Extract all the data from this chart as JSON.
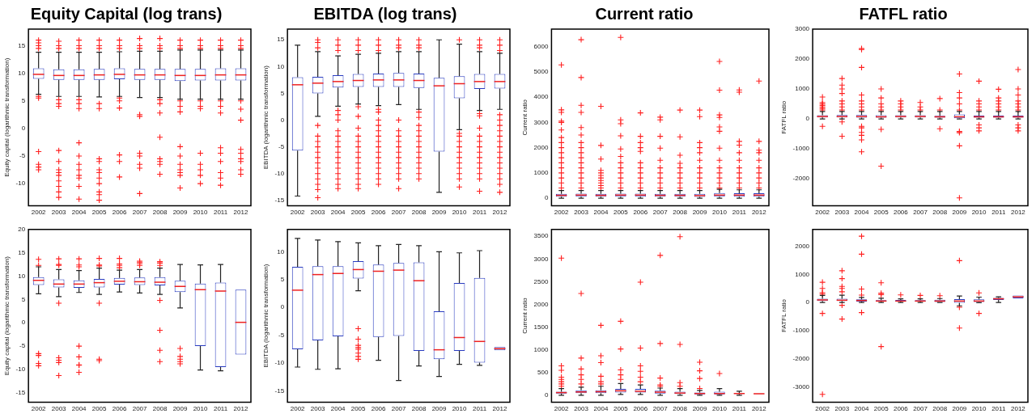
{
  "chart_data": [
    {
      "type": "box",
      "title": "Equity Capital (log trans)",
      "ylabel": "Equity capital (logarithmic transformation)",
      "categories": [
        "2002",
        "2003",
        "2004",
        "2005",
        "2006",
        "2007",
        "2008",
        "2009",
        "2010",
        "2011",
        "2012"
      ],
      "ylim": [
        -14,
        18
      ],
      "yticks": [
        -10,
        -5,
        0,
        5,
        10,
        15
      ],
      "grid": false,
      "legend": false,
      "marker": "cross",
      "boxes": [
        {
          "low": 6.2,
          "q1": 9.0,
          "median": 9.8,
          "q3": 10.9,
          "high": 13.8,
          "outliers": [
            14.5,
            15,
            15.5,
            16,
            5.5,
            5.8,
            -4.2,
            -6.5,
            -7,
            -7.5
          ]
        },
        {
          "low": 5.8,
          "q1": 8.8,
          "median": 9.6,
          "q3": 10.7,
          "high": 13.8,
          "outliers": [
            14.5,
            15,
            15.8,
            5.2,
            4.5,
            4,
            -4,
            -6,
            -7.5,
            -8,
            -8.5,
            -9.5,
            -10.5,
            -11.5,
            -12.5
          ]
        },
        {
          "low": 5.8,
          "q1": 8.8,
          "median": 9.6,
          "q3": 10.7,
          "high": 13.8,
          "outliers": [
            14.5,
            15,
            16,
            5.2,
            4.5,
            3.6,
            -2.6,
            -5,
            -6.5,
            -7.5,
            -8.5,
            -9,
            -10.5,
            -12.8
          ]
        },
        {
          "low": 5.7,
          "q1": 8.8,
          "median": 9.7,
          "q3": 10.8,
          "high": 13.8,
          "outliers": [
            14.5,
            15,
            16,
            4.5,
            3.6,
            -5.5,
            -6,
            -7.5,
            -8,
            -9,
            -10,
            -11.5,
            -12,
            -13
          ]
        },
        {
          "low": 5.8,
          "q1": 8.9,
          "median": 9.8,
          "q3": 10.9,
          "high": 13.9,
          "outliers": [
            14.5,
            15,
            16,
            5.5,
            5,
            3.7,
            -4.8,
            -6,
            -8.8
          ]
        },
        {
          "low": 5.6,
          "q1": 8.8,
          "median": 9.7,
          "q3": 10.8,
          "high": 14,
          "outliers": [
            14.5,
            15,
            16.3,
            2.5,
            2.2,
            -4.5,
            -5,
            -6.5,
            -7.2,
            -11.8
          ]
        },
        {
          "low": 5.6,
          "q1": 8.8,
          "median": 9.7,
          "q3": 10.8,
          "high": 14,
          "outliers": [
            14.5,
            15,
            16.3,
            5.2,
            4.5,
            2.8,
            -1.6,
            -5.5,
            -6,
            -6.5,
            -8.3
          ]
        },
        {
          "low": 5.3,
          "q1": 8.6,
          "median": 9.6,
          "q3": 10.8,
          "high": 14.2,
          "outliers": [
            14.5,
            15,
            16,
            5,
            4,
            3,
            -3.3,
            -5,
            -6.5,
            -7.5,
            -8,
            -8.5,
            -10.8
          ]
        },
        {
          "low": 5.3,
          "q1": 8.7,
          "median": 9.6,
          "q3": 10.8,
          "high": 14.2,
          "outliers": [
            14.5,
            15,
            16,
            5,
            4,
            3.6,
            -4.5,
            -6.5,
            -7.5,
            -8.5,
            -10
          ]
        },
        {
          "low": 5.3,
          "q1": 8.7,
          "median": 9.7,
          "q3": 10.9,
          "high": 14.2,
          "outliers": [
            14.5,
            15,
            16,
            5,
            4,
            2.8,
            -3.5,
            -4.5,
            -6,
            -8,
            -9,
            -10.3
          ]
        },
        {
          "low": 5.3,
          "q1": 8.7,
          "median": 9.7,
          "q3": 10.9,
          "high": 14.2,
          "outliers": [
            14.5,
            15,
            16,
            5,
            3.5,
            1.5,
            -3.8,
            -4.5,
            -5.5,
            -6,
            -7.5,
            -8.3
          ]
        }
      ]
    },
    {
      "type": "box",
      "title": "EBITDA (log trans)",
      "ylabel": "EBITDA (logarithmic transformation)",
      "categories": [
        "2002",
        "2003",
        "2004",
        "2005",
        "2006",
        "2007",
        "2008",
        "2009",
        "2010",
        "2011",
        "2012"
      ],
      "ylim": [
        -16,
        17
      ],
      "yticks": [
        -15,
        -10,
        -5,
        0,
        5,
        10,
        15
      ],
      "grid": false,
      "legend": false,
      "marker": "cross",
      "boxes": [
        {
          "low": -14.2,
          "q1": -5.7,
          "median": 6.6,
          "q3": 8,
          "high": 14
        },
        {
          "low": 0.7,
          "q1": 5,
          "median": 6.9,
          "q3": 8.1,
          "high": 12.8,
          "outliers": [
            13.5,
            14.5,
            15,
            -1,
            -3,
            -4,
            -5,
            -6,
            -7,
            -8,
            -9,
            -10,
            -11,
            -12,
            -13,
            -14.5
          ]
        },
        {
          "low": 2.6,
          "q1": 6.1,
          "median": 7.2,
          "q3": 8.4,
          "high": 12,
          "outliers": [
            13,
            14,
            15,
            1.8,
            1,
            0,
            -2,
            -3,
            -4,
            -5,
            -6,
            -7,
            -8,
            -9,
            -10,
            -11,
            -12,
            -12.8
          ]
        },
        {
          "low": 3,
          "q1": 6.2,
          "median": 7.4,
          "q3": 8.6,
          "high": 12.3,
          "outliers": [
            13,
            14,
            15,
            2.5,
            0.7,
            -1.5,
            -3,
            -4,
            -5,
            -6,
            -7,
            -8,
            -9,
            -10,
            -11,
            -12,
            -12.8
          ]
        },
        {
          "low": 2.7,
          "q1": 6.2,
          "median": 7.5,
          "q3": 8.7,
          "high": 12.5,
          "outliers": [
            13,
            14,
            15,
            2,
            1.5,
            0,
            -1,
            -2,
            -3,
            -4,
            -5,
            -6,
            -7,
            -8,
            -9,
            -10,
            -11,
            -12
          ]
        },
        {
          "low": 2.9,
          "q1": 6.2,
          "median": 7.5,
          "q3": 8.8,
          "high": 12.8,
          "outliers": [
            13.5,
            14,
            15,
            0,
            -2,
            -3,
            -4,
            -5,
            -6,
            -7,
            -8,
            -9,
            -10,
            -11,
            -12.8
          ]
        },
        {
          "low": 2,
          "q1": 6,
          "median": 7.4,
          "q3": 8.7,
          "high": 12.8,
          "outliers": [
            13.5,
            14,
            15,
            1.5,
            0.5,
            -1,
            -2,
            -3,
            -4,
            -5,
            -6,
            -7,
            -8,
            -9,
            -10,
            -11
          ]
        },
        {
          "low": -13.5,
          "q1": -5.9,
          "median": 6.4,
          "q3": 7.9,
          "high": 15
        },
        {
          "low": -1.8,
          "q1": 4.1,
          "median": 6.8,
          "q3": 8.2,
          "high": 14.2,
          "outliers": [
            15,
            -2.5,
            -3,
            -4,
            -5,
            -6,
            -7,
            -8,
            -9,
            -10,
            -11,
            -12.5
          ]
        },
        {
          "low": 1.8,
          "q1": 5.8,
          "median": 7.2,
          "q3": 8.6,
          "high": 12.8,
          "outliers": [
            13.5,
            14,
            15,
            1.2,
            0.8,
            -1.5,
            -3,
            -4,
            -5,
            -6,
            -7,
            -8,
            -9,
            -10,
            -11,
            -13.3
          ]
        },
        {
          "low": 2,
          "q1": 5.9,
          "median": 7.2,
          "q3": 8.6,
          "high": 12.5,
          "outliers": [
            13,
            14,
            15,
            1,
            0,
            -1,
            -2,
            -3,
            -4,
            -5,
            -6,
            -7,
            -8,
            -9,
            -10,
            -11,
            -12,
            -13.5
          ]
        }
      ]
    },
    {
      "type": "box",
      "title": "Current ratio",
      "ylabel": "Current ratio",
      "categories": [
        "2002",
        "2003",
        "2004",
        "2005",
        "2006",
        "2007",
        "2008",
        "2009",
        "2010",
        "2011",
        "2012"
      ],
      "ylim": [
        -300,
        6700
      ],
      "yticks": [
        0,
        1000,
        2000,
        3000,
        4000,
        5000,
        6000
      ],
      "grid": false,
      "legend": false,
      "marker": "cross",
      "boxes": [
        {
          "low": 0,
          "q1": 60,
          "median": 110,
          "q3": 170,
          "high": 300,
          "outliers": [
            400,
            600,
            800,
            1000,
            1200,
            1400,
            1600,
            1800,
            2000,
            2200,
            2400,
            2700,
            3000,
            3050,
            3400,
            3500,
            5280
          ]
        },
        {
          "low": 0,
          "q1": 60,
          "median": 120,
          "q3": 180,
          "high": 300,
          "outliers": [
            400,
            600,
            800,
            1000,
            1200,
            1400,
            1600,
            1800,
            2000,
            2200,
            2500,
            2800,
            3400,
            3680,
            4780,
            6280
          ]
        },
        {
          "low": 0,
          "q1": 60,
          "median": 110,
          "q3": 170,
          "high": 300,
          "outliers": [
            400,
            500,
            600,
            700,
            800,
            900,
            1000,
            1100,
            1550,
            2090,
            3640
          ]
        },
        {
          "low": 0,
          "q1": 60,
          "median": 120,
          "q3": 180,
          "high": 300,
          "outliers": [
            400,
            600,
            800,
            1000,
            1200,
            1400,
            1650,
            1950,
            2470,
            2950,
            3100,
            6370
          ]
        },
        {
          "low": 0,
          "q1": 60,
          "median": 120,
          "q3": 180,
          "high": 300,
          "outliers": [
            400,
            600,
            800,
            1000,
            1200,
            1400,
            1850,
            2000,
            2200,
            2450,
            3380
          ]
        },
        {
          "low": 0,
          "q1": 60,
          "median": 110,
          "q3": 170,
          "high": 300,
          "outliers": [
            400,
            600,
            800,
            1000,
            1200,
            1500,
            1980,
            2450,
            3100,
            3210
          ]
        },
        {
          "low": 0,
          "q1": 60,
          "median": 110,
          "q3": 170,
          "high": 300,
          "outliers": [
            400,
            600,
            800,
            1000,
            1200,
            1380,
            1700,
            2430,
            3490
          ]
        },
        {
          "low": 0,
          "q1": 50,
          "median": 100,
          "q3": 170,
          "high": 300,
          "outliers": [
            400,
            600,
            800,
            1000,
            1200,
            1500,
            1800,
            2000,
            2200,
            3230,
            3490
          ]
        },
        {
          "low": 0,
          "q1": 60,
          "median": 120,
          "q3": 200,
          "high": 350,
          "outliers": [
            400,
            600,
            800,
            1000,
            1200,
            1500,
            1980,
            2650,
            2820,
            3200,
            3300,
            4280,
            5420
          ]
        },
        {
          "low": 0,
          "q1": 60,
          "median": 120,
          "q3": 190,
          "high": 330,
          "outliers": [
            400,
            600,
            800,
            1000,
            1200,
            1500,
            1800,
            2100,
            2250,
            4200,
            4290
          ]
        },
        {
          "low": 0,
          "q1": 60,
          "median": 120,
          "q3": 190,
          "high": 330,
          "outliers": [
            400,
            600,
            800,
            1000,
            1200,
            1500,
            1800,
            1900,
            2250,
            4640
          ]
        }
      ]
    },
    {
      "type": "box",
      "title": "FATFL ratio",
      "ylabel": "FATFL ratio",
      "categories": [
        "2002",
        "2003",
        "2004",
        "2005",
        "2006",
        "2007",
        "2008",
        "2009",
        "2010",
        "2011",
        "2012"
      ],
      "ylim": [
        -2900,
        3000
      ],
      "yticks": [
        -2000,
        -1000,
        0,
        1000,
        2000,
        3000
      ],
      "grid": false,
      "legend": false,
      "marker": "cross",
      "boxes": [
        {
          "low": 0,
          "q1": 50,
          "median": 80,
          "q3": 120,
          "high": 250,
          "outliers": [
            300,
            350,
            400,
            450,
            500,
            550,
            730,
            -250
          ]
        },
        {
          "low": 0,
          "q1": 50,
          "median": 80,
          "q3": 130,
          "high": 250,
          "outliers": [
            300,
            400,
            500,
            600,
            850,
            1000,
            1130,
            1350,
            -100,
            -580
          ]
        },
        {
          "low": 0,
          "q1": 40,
          "median": 80,
          "q3": 130,
          "high": 250,
          "outliers": [
            300,
            400,
            500,
            600,
            800,
            1720,
            2320,
            2350,
            -250,
            -300,
            -450,
            -550,
            -700,
            -1100
          ]
        },
        {
          "low": 0,
          "q1": 40,
          "median": 70,
          "q3": 120,
          "high": 250,
          "outliers": [
            300,
            400,
            500,
            700,
            1000,
            -350,
            -1580
          ]
        },
        {
          "low": 0,
          "q1": 50,
          "median": 80,
          "q3": 120,
          "high": 250,
          "outliers": [
            300,
            400,
            500,
            600
          ]
        },
        {
          "low": 0,
          "q1": 50,
          "median": 80,
          "q3": 120,
          "high": 250,
          "outliers": [
            300,
            400,
            550
          ]
        },
        {
          "low": 0,
          "q1": 40,
          "median": 70,
          "q3": 100,
          "high": 250,
          "outliers": [
            300,
            680,
            -330
          ]
        },
        {
          "low": 0,
          "q1": 20,
          "median": 70,
          "q3": 150,
          "high": 250,
          "outliers": [
            300,
            500,
            700,
            880,
            1500,
            -420,
            -460,
            -900,
            -2640
          ]
        },
        {
          "low": 0,
          "q1": 40,
          "median": 70,
          "q3": 110,
          "high": 250,
          "outliers": [
            300,
            400,
            500,
            600,
            1260,
            -200,
            -300,
            -400
          ]
        },
        {
          "low": 0,
          "q1": 40,
          "median": 70,
          "q3": 110,
          "high": 250,
          "outliers": [
            300,
            400,
            500,
            600,
            700,
            990
          ]
        },
        {
          "low": 0,
          "q1": 40,
          "median": 70,
          "q3": 110,
          "high": 250,
          "outliers": [
            300,
            400,
            500,
            600,
            800,
            1000,
            1650,
            -200,
            -300,
            -400
          ]
        }
      ]
    },
    {
      "type": "box",
      "ylabel": "Equity capital (logarithmic transformation)",
      "categories": [
        "2002",
        "2003",
        "2004",
        "2005",
        "2006",
        "2007",
        "2008",
        "2009",
        "2010",
        "2011",
        "2012"
      ],
      "ylim": [
        -17,
        20
      ],
      "yticks": [
        -15,
        -10,
        -5,
        0,
        5,
        10,
        15,
        20
      ],
      "grid": false,
      "legend": false,
      "marker": "cross",
      "boxes": [
        {
          "low": 6.2,
          "q1": 8.1,
          "median": 9.1,
          "q3": 9.8,
          "high": 12,
          "outliers": [
            12.3,
            13.6,
            -6.6,
            -7,
            -8.7,
            -9.2
          ]
        },
        {
          "low": 5.6,
          "q1": 7.6,
          "median": 8.3,
          "q3": 9.3,
          "high": 11.4,
          "outliers": [
            12.3,
            12.5,
            13.7,
            4.2,
            -7.5,
            -8,
            -8.5,
            -11.3
          ]
        },
        {
          "low": 6.5,
          "q1": 7.5,
          "median": 8.3,
          "q3": 9.1,
          "high": 11.2,
          "outliers": [
            12,
            12.4,
            13.7,
            -5,
            -7.3,
            -9,
            -9.1,
            -10.6
          ]
        },
        {
          "low": 6.1,
          "q1": 7.6,
          "median": 8.6,
          "q3": 9.4,
          "high": 11.7,
          "outliers": [
            12.2,
            12.4,
            13.8,
            4.2,
            -7.8,
            -8.1
          ]
        },
        {
          "low": 6.6,
          "q1": 8.2,
          "median": 8.9,
          "q3": 9.6,
          "high": 11.3,
          "outliers": [
            11.8,
            12.3,
            12.6,
            13.8
          ]
        },
        {
          "low": 6.4,
          "q1": 8.1,
          "median": 8.8,
          "q3": 9.7,
          "high": 11.4,
          "outliers": [
            12.3,
            12.7,
            13,
            13.2
          ]
        },
        {
          "low": 6.1,
          "q1": 8,
          "median": 8.7,
          "q3": 9.8,
          "high": 11.7,
          "outliers": [
            12.3,
            12.8,
            13.1,
            4.8,
            -1.6,
            -5.9,
            -8.3
          ]
        },
        {
          "low": 3.2,
          "q1": 6.6,
          "median": 7.8,
          "q3": 9,
          "high": 12.5,
          "outliers": [
            -5.5,
            -7.2,
            -7.8,
            -8.3,
            -8.8
          ]
        },
        {
          "low": -10.1,
          "q1": -5,
          "median": 7.1,
          "q3": 8.4,
          "high": 12.4
        },
        {
          "low": -10.3,
          "q1": -9.5,
          "median": 6.8,
          "q3": 8.6,
          "high": 12.5
        },
        {
          "low": -6.8,
          "q1": -6.8,
          "median": 0.1,
          "q3": 7.1,
          "high": 7.1
        }
      ]
    },
    {
      "type": "box",
      "ylabel": "EBITDA (logarithmic transformation)",
      "categories": [
        "2002",
        "2003",
        "2004",
        "2005",
        "2006",
        "2007",
        "2008",
        "2009",
        "2010",
        "2011",
        "2012"
      ],
      "ylim": [
        -17,
        14
      ],
      "yticks": [
        -15,
        -10,
        -5,
        0,
        5,
        10
      ],
      "grid": false,
      "legend": false,
      "marker": "cross",
      "boxes": [
        {
          "low": -10.7,
          "q1": -7.5,
          "median": 3.1,
          "q3": 7.3,
          "high": 12.4
        },
        {
          "low": -11.1,
          "q1": -5.9,
          "median": 5.9,
          "q3": 7.4,
          "high": 12.1
        },
        {
          "low": -11,
          "q1": -5.2,
          "median": 6.1,
          "q3": 7.4,
          "high": 11.8
        },
        {
          "low": 3,
          "q1": 5.2,
          "median": 6.8,
          "q3": 8.3,
          "high": 11.6,
          "outliers": [
            -3.8,
            -5.7,
            -6.8,
            -7.2,
            -7.5,
            -8.2,
            -8.8,
            -9.3
          ]
        },
        {
          "low": -9.5,
          "q1": -5.3,
          "median": 6.5,
          "q3": 7.7,
          "high": 11.1
        },
        {
          "low": -13.1,
          "q1": -5.1,
          "median": 6.7,
          "q3": 8,
          "high": 11.3
        },
        {
          "low": -10.5,
          "q1": -7.8,
          "median": 4.8,
          "q3": 8.1,
          "high": 11.1
        },
        {
          "low": -12.4,
          "q1": -9.3,
          "median": -7.6,
          "q3": -0.7,
          "high": 10
        },
        {
          "low": -10.2,
          "q1": -7.8,
          "median": -5.4,
          "q3": 4.4,
          "high": 9.8
        },
        {
          "low": -10.4,
          "q1": -9.9,
          "median": -6.1,
          "q3": 5.3,
          "high": 10.2
        },
        {
          "low": -7.7,
          "q1": -7.7,
          "median": -7.4,
          "q3": -7.1,
          "high": -7.1
        }
      ]
    },
    {
      "type": "box",
      "ylabel": "Current ratio",
      "categories": [
        "2002",
        "2003",
        "2004",
        "2005",
        "2006",
        "2007",
        "2008",
        "2009",
        "2010",
        "2011",
        "2012"
      ],
      "ylim": [
        -150,
        3650
      ],
      "yticks": [
        0,
        500,
        1000,
        1500,
        2000,
        2500,
        3000,
        3500
      ],
      "grid": false,
      "legend": false,
      "marker": "cross",
      "boxes": [
        {
          "low": 0,
          "q1": 40,
          "median": 60,
          "q3": 80,
          "high": 150,
          "outliers": [
            200,
            250,
            300,
            350,
            400,
            550,
            650,
            3020
          ]
        },
        {
          "low": 0,
          "q1": 50,
          "median": 75,
          "q3": 110,
          "high": 180,
          "outliers": [
            250,
            350,
            450,
            580,
            820,
            2240
          ]
        },
        {
          "low": 0,
          "q1": 50,
          "median": 80,
          "q3": 110,
          "high": 200,
          "outliers": [
            250,
            300,
            420,
            720,
            870,
            1540
          ]
        },
        {
          "low": 20,
          "q1": 60,
          "median": 100,
          "q3": 140,
          "high": 260,
          "outliers": [
            350,
            450,
            560,
            1020,
            1630
          ]
        },
        {
          "low": 20,
          "q1": 60,
          "median": 90,
          "q3": 140,
          "high": 230,
          "outliers": [
            300,
            400,
            530,
            650,
            1040,
            2490
          ]
        },
        {
          "low": 0,
          "q1": 40,
          "median": 70,
          "q3": 100,
          "high": 160,
          "outliers": [
            200,
            230,
            380,
            1140,
            3080
          ]
        },
        {
          "low": 0,
          "q1": 30,
          "median": 50,
          "q3": 80,
          "high": 150,
          "outliers": [
            200,
            280,
            1120,
            3490
          ]
        },
        {
          "low": 0,
          "q1": 20,
          "median": 40,
          "q3": 60,
          "high": 110,
          "outliers": [
            150,
            370,
            540,
            730
          ]
        },
        {
          "low": 0,
          "q1": 20,
          "median": 40,
          "q3": 80,
          "high": 150,
          "outliers": [
            480
          ]
        },
        {
          "low": 0,
          "q1": 30,
          "median": 40,
          "q3": 50,
          "high": 90
        },
        {
          "low": 30,
          "q1": 30,
          "median": 35,
          "q3": 40,
          "high": 40
        }
      ]
    },
    {
      "type": "box",
      "ylabel": "FATFL ratio",
      "categories": [
        "2002",
        "2003",
        "2004",
        "2005",
        "2006",
        "2007",
        "2008",
        "2009",
        "2010",
        "2011",
        "2012"
      ],
      "ylim": [
        -3550,
        2600
      ],
      "yticks": [
        -3000,
        -2000,
        -1000,
        0,
        1000,
        2000
      ],
      "grid": false,
      "legend": false,
      "marker": "cross",
      "boxes": [
        {
          "low": 0,
          "q1": 50,
          "median": 90,
          "q3": 130,
          "high": 250,
          "outliers": [
            300,
            350,
            500,
            720,
            -390,
            -3270
          ]
        },
        {
          "low": 0,
          "q1": 50,
          "median": 80,
          "q3": 130,
          "high": 260,
          "outliers": [
            380,
            500,
            570,
            850,
            1130,
            -100,
            -590
          ]
        },
        {
          "low": 0,
          "q1": 30,
          "median": 70,
          "q3": 110,
          "high": 180,
          "outliers": [
            260,
            480,
            1720,
            2360,
            -360
          ]
        },
        {
          "low": 0,
          "q1": 30,
          "median": 50,
          "q3": 80,
          "high": 150,
          "outliers": [
            280,
            330,
            700,
            -1570
          ]
        },
        {
          "low": 0,
          "q1": 30,
          "median": 50,
          "q3": 90,
          "high": 130,
          "outliers": [
            270
          ]
        },
        {
          "low": 0,
          "q1": 30,
          "median": 50,
          "q3": 80,
          "high": 130,
          "outliers": [
            250
          ]
        },
        {
          "low": 0,
          "q1": 20,
          "median": 50,
          "q3": 100,
          "high": 140,
          "outliers": [
            240
          ]
        },
        {
          "low": -120,
          "q1": -10,
          "median": 50,
          "q3": 120,
          "high": 230,
          "outliers": [
            1490,
            -170,
            -910
          ]
        },
        {
          "low": -10,
          "q1": 20,
          "median": 50,
          "q3": 110,
          "high": 190,
          "outliers": [
            340,
            -390
          ]
        },
        {
          "low": 0,
          "q1": 90,
          "median": 130,
          "q3": 160,
          "high": 200
        },
        {
          "low": 150,
          "q1": 150,
          "median": 200,
          "q3": 250,
          "high": 250
        }
      ]
    }
  ]
}
